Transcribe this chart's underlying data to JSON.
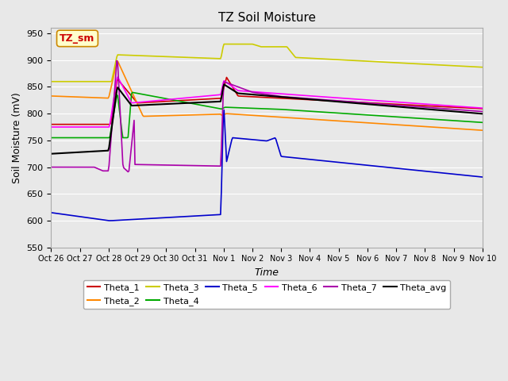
{
  "title": "TZ Soil Moisture",
  "xlabel": "Time",
  "ylabel": "Soil Moisture (mV)",
  "ylim": [
    550,
    960
  ],
  "yticks": [
    550,
    600,
    650,
    700,
    750,
    800,
    850,
    900,
    950
  ],
  "plot_bg_color": "#e8e8e8",
  "legend_colors": [
    "#cc0000",
    "#ff8800",
    "#cccc00",
    "#00aa00",
    "#0000cc",
    "#ff00ff",
    "#aa00aa",
    "#000000"
  ],
  "annotation_text": "TZ_sm",
  "annotation_color": "#cc0000",
  "annotation_bg": "#ffffcc",
  "num_points": 500
}
